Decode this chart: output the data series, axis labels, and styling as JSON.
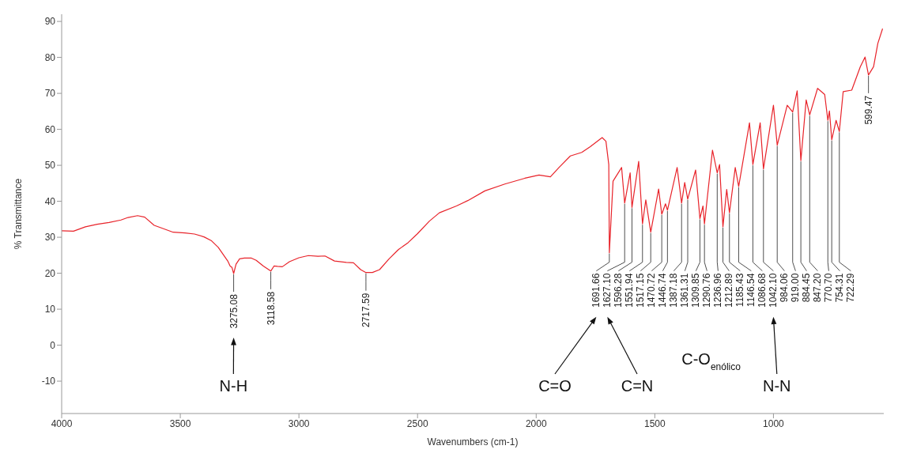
{
  "chart_data": {
    "type": "line",
    "xlabel": "Wavenumbers (cm-1)",
    "ylabel": "% Transmittance",
    "xlim": [
      4000,
      535
    ],
    "xticks": [
      4000,
      3500,
      3000,
      2500,
      2000,
      1500,
      1000
    ],
    "ylim": [
      -19,
      92
    ],
    "yticks": [
      -10,
      0,
      10,
      20,
      30,
      40,
      50,
      60,
      70,
      80,
      90
    ],
    "marker": "none",
    "series": [
      {
        "color": "#e8232a",
        "x": [
          4000,
          3950,
          3900,
          3850,
          3800,
          3750,
          3720,
          3680,
          3650,
          3610,
          3580,
          3530,
          3480,
          3440,
          3400,
          3370,
          3340,
          3300,
          3290,
          3282,
          3275.08,
          3265,
          3250,
          3230,
          3200,
          3180,
          3150,
          3118.58,
          3105,
          3090,
          3070,
          3040,
          3000,
          2960,
          2920,
          2890,
          2850,
          2800,
          2770,
          2740,
          2717.59,
          2690,
          2660,
          2620,
          2580,
          2540,
          2500,
          2450,
          2408,
          2336,
          2288,
          2216,
          2132,
          2048,
          1988,
          1940,
          1904,
          1856,
          1808,
          1772,
          1722,
          1706,
          1694,
          1691.66,
          1676,
          1640,
          1627.1,
          1604,
          1596.28,
          1568,
          1551.94,
          1538,
          1517.15,
          1484,
          1470.72,
          1455,
          1446.74,
          1406,
          1387.18,
          1374,
          1361.31,
          1328,
          1309.85,
          1297,
          1290.76,
          1257,
          1236.96,
          1227,
          1212.89,
          1197,
          1185.43,
          1161,
          1146.54,
          1101,
          1086.68,
          1056,
          1042.1,
          1000,
          984.06,
          942,
          919,
          900,
          884.45,
          862,
          847.2,
          814,
          784,
          770.7,
          764,
          754.31,
          736,
          722.29,
          706,
          670,
          634,
          614,
          599.47,
          578,
          560,
          540
        ],
        "values": [
          31.8,
          31.7,
          32.9,
          33.6,
          34.1,
          34.8,
          35.5,
          36.0,
          35.6,
          33.3,
          32.6,
          31.4,
          31.2,
          30.9,
          30.1,
          29.1,
          27.2,
          23.4,
          22.0,
          21.6,
          19.9,
          22.5,
          24.0,
          24.2,
          24.2,
          23.6,
          22.0,
          20.6,
          22.0,
          21.9,
          21.8,
          23.2,
          24.3,
          24.9,
          24.7,
          24.8,
          23.4,
          23.0,
          22.9,
          21.0,
          20.2,
          20.2,
          21.0,
          24.0,
          26.6,
          28.5,
          31.0,
          34.5,
          36.8,
          38.7,
          40.2,
          42.9,
          44.8,
          46.4,
          47.3,
          46.8,
          49.4,
          52.6,
          53.6,
          55.2,
          57.7,
          56.7,
          50.2,
          25.7,
          45.6,
          49.4,
          39.5,
          47.9,
          38.3,
          51.1,
          33.7,
          40.4,
          31.4,
          43.4,
          36.4,
          39.3,
          37.5,
          49.4,
          39.5,
          45.2,
          40.6,
          48.7,
          35.2,
          38.7,
          33.7,
          54.2,
          47.9,
          50.2,
          32.9,
          43.3,
          36.8,
          49.4,
          44.1,
          61.8,
          50.2,
          61.8,
          49.0,
          66.7,
          55.6,
          66.7,
          64.8,
          70.7,
          51.3,
          68.2,
          64.0,
          71.4,
          69.7,
          62.5,
          65.1,
          57.1,
          62.5,
          59.4,
          70.5,
          70.9,
          77.4,
          80.1,
          75.1,
          77.4,
          83.9,
          88.0
        ]
      }
    ],
    "annotations": [
      {
        "text": "3275.08",
        "x": 3275.08,
        "y": 19.9
      },
      {
        "text": "3118.58",
        "x": 3118.58,
        "y": 20.6
      },
      {
        "text": "2717.59",
        "x": 2717.59,
        "y": 20.2
      },
      {
        "text": "1691.66",
        "x": 1691.66,
        "y": 25.7
      },
      {
        "text": "1627.10",
        "x": 1627.1,
        "y": 39.5
      },
      {
        "text": "1596.28",
        "x": 1596.28,
        "y": 38.3
      },
      {
        "text": "1551.94",
        "x": 1551.94,
        "y": 33.7
      },
      {
        "text": "1517.15",
        "x": 1517.15,
        "y": 31.4
      },
      {
        "text": "1470.72",
        "x": 1470.72,
        "y": 36.4
      },
      {
        "text": "1446.74",
        "x": 1446.74,
        "y": 37.5
      },
      {
        "text": "1387.18",
        "x": 1387.18,
        "y": 39.5
      },
      {
        "text": "1361.31",
        "x": 1361.31,
        "y": 40.6
      },
      {
        "text": "1309.85",
        "x": 1309.85,
        "y": 35.2
      },
      {
        "text": "1290.76",
        "x": 1290.76,
        "y": 33.7
      },
      {
        "text": "1236.96",
        "x": 1236.96,
        "y": 47.9
      },
      {
        "text": "1212.89",
        "x": 1212.89,
        "y": 32.9
      },
      {
        "text": "1185.43",
        "x": 1185.43,
        "y": 36.8
      },
      {
        "text": "1146.54",
        "x": 1146.54,
        "y": 44.1
      },
      {
        "text": "1086.68",
        "x": 1086.68,
        "y": 50.2
      },
      {
        "text": "1042.10",
        "x": 1042.1,
        "y": 49.0
      },
      {
        "text": "984.06",
        "x": 984.06,
        "y": 55.6
      },
      {
        "text": "919.00",
        "x": 919,
        "y": 64.8
      },
      {
        "text": "884.45",
        "x": 884.45,
        "y": 51.3
      },
      {
        "text": "847.20",
        "x": 847.2,
        "y": 64.0
      },
      {
        "text": "770.70",
        "x": 770.7,
        "y": 62.5
      },
      {
        "text": "754.31",
        "x": 754.31,
        "y": 57.1
      },
      {
        "text": "722.29",
        "x": 722.29,
        "y": 59.4
      },
      {
        "text": "599.47",
        "x": 599.47,
        "y": 75.1
      },
      "N-H",
      "C=O",
      "C=N",
      "C-O$_{enólico}$",
      "N-N"
    ]
  }
}
